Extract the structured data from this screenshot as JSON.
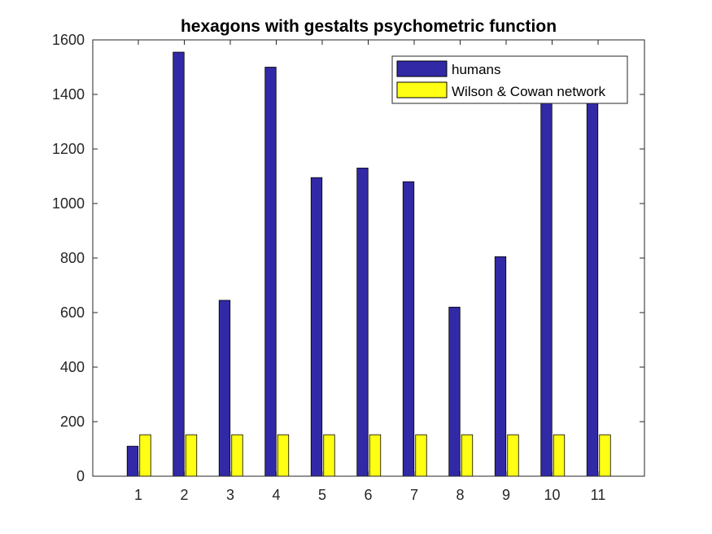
{
  "chart_data": {
    "type": "bar",
    "title": "hexagons with gestalts psychometric function",
    "xlabel": "",
    "ylabel": "",
    "categories": [
      "1",
      "2",
      "3",
      "4",
      "5",
      "6",
      "7",
      "8",
      "9",
      "10",
      "11"
    ],
    "series": [
      {
        "name": "humans",
        "color": "#3229a6",
        "values": [
          110,
          1555,
          645,
          1500,
          1095,
          1130,
          1080,
          620,
          805,
          1380,
          1380
        ]
      },
      {
        "name": "Wilson & Cowan network",
        "color": "#ffff14",
        "values": [
          152,
          152,
          152,
          152,
          152,
          152,
          152,
          152,
          152,
          152,
          152
        ]
      }
    ],
    "ylim": [
      0,
      1600
    ],
    "yticks": [
      0,
      200,
      400,
      600,
      800,
      1000,
      1200,
      1400,
      1600
    ],
    "legend_position": "top-right",
    "grid": false
  }
}
